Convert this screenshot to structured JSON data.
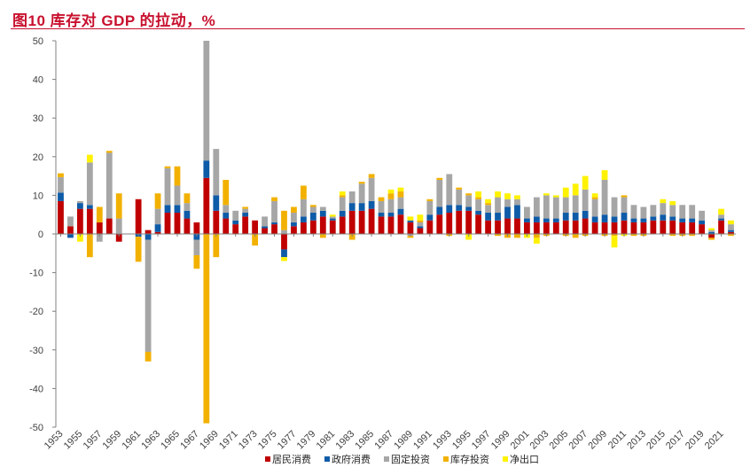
{
  "title": "图10 库存对 GDP 的拉动，%",
  "chart_data": {
    "type": "bar",
    "stacked": true,
    "ylim": [
      -50,
      50
    ],
    "yticks": [
      -50,
      -40,
      -30,
      -20,
      -10,
      0,
      10,
      20,
      30,
      40,
      50
    ],
    "x": [
      1953,
      1954,
      1955,
      1956,
      1957,
      1958,
      1959,
      1960,
      1961,
      1962,
      1963,
      1964,
      1965,
      1966,
      1967,
      1968,
      1969,
      1970,
      1971,
      1972,
      1973,
      1974,
      1975,
      1976,
      1977,
      1978,
      1979,
      1980,
      1981,
      1982,
      1983,
      1984,
      1985,
      1986,
      1987,
      1988,
      1989,
      1990,
      1991,
      1992,
      1993,
      1994,
      1995,
      1996,
      1997,
      1998,
      1999,
      2000,
      2001,
      2002,
      2003,
      2004,
      2005,
      2006,
      2007,
      2008,
      2009,
      2010,
      2011,
      2012,
      2013,
      2014,
      2015,
      2016,
      2017,
      2018,
      2019,
      2020,
      2021,
      2022
    ],
    "xtick_labels": [
      "1953",
      "1955",
      "1957",
      "1959",
      "1961",
      "1963",
      "1965",
      "1967",
      "1969",
      "1971",
      "1973",
      "1975",
      "1977",
      "1979",
      "1981",
      "1983",
      "1985",
      "1987",
      "1989",
      "1991",
      "1993",
      "1995",
      "1997",
      "1999",
      "2001",
      "2003",
      "2005",
      "2007",
      "2009",
      "2011",
      "2013",
      "2015",
      "2017",
      "2019",
      "2021"
    ],
    "legend_position": "bottom",
    "grid": false,
    "series": [
      {
        "name": "居民消费",
        "color": "#C00000",
        "values": [
          8.5,
          2,
          6.5,
          6.5,
          3,
          4,
          -2,
          0,
          9,
          1,
          0.5,
          5.5,
          5.5,
          4,
          3,
          14.5,
          6,
          4,
          2.5,
          4.5,
          3.5,
          1.5,
          2.5,
          -4,
          2,
          3,
          3.5,
          4.5,
          3.5,
          4.5,
          6,
          6,
          6.5,
          4.5,
          4.5,
          5,
          3,
          1.5,
          3.5,
          5,
          5.5,
          6,
          6,
          5,
          3.5,
          3.5,
          4,
          4,
          3,
          3,
          3,
          3,
          3.5,
          3.5,
          4,
          3,
          3,
          3,
          3.5,
          3,
          3,
          3.5,
          3.5,
          3.5,
          3,
          3,
          2.5,
          -1,
          3.5,
          0.5
        ]
      },
      {
        "name": "政府消费",
        "color": "#0E5BA8",
        "values": [
          2.2,
          -1,
          1.5,
          1,
          0,
          0,
          0,
          0,
          -0.7,
          -1.5,
          2,
          2,
          2,
          2,
          -1.5,
          4.5,
          4,
          1.5,
          1,
          1,
          0,
          0.5,
          0.5,
          -2,
          1,
          1.5,
          2,
          1.5,
          0.5,
          1.5,
          2,
          2,
          2,
          1,
          1,
          1.5,
          0.5,
          0.5,
          1.5,
          2,
          2,
          1.5,
          1,
          1,
          2,
          2,
          3,
          3.5,
          1,
          1.5,
          1,
          1,
          2,
          2,
          2,
          1.5,
          2,
          1.5,
          2,
          1,
          1,
          1,
          1.5,
          1,
          1,
          1,
          1,
          0.5,
          0.5,
          0.5
        ]
      },
      {
        "name": "固定投资",
        "color": "#A6A6A6",
        "values": [
          4,
          2.5,
          0.5,
          11,
          -2,
          17,
          4,
          0,
          0,
          -29,
          4,
          9.5,
          5,
          2,
          -4,
          31,
          12,
          2,
          2.5,
          1,
          0,
          2.5,
          5.5,
          1,
          2.5,
          4.5,
          1.5,
          1,
          0.5,
          3.5,
          3,
          5,
          6,
          3,
          3.5,
          3,
          -0.5,
          1,
          3.5,
          7,
          8,
          4,
          3,
          3,
          2,
          4,
          2,
          1.5,
          3,
          5,
          6,
          5.5,
          4,
          4.5,
          5.5,
          4.5,
          9,
          5,
          4,
          3.5,
          3,
          3,
          3,
          3,
          3.5,
          3.5,
          2.5,
          0.5,
          1,
          1.5
        ]
      },
      {
        "name": "库存投资",
        "color": "#F2B100",
        "values": [
          1,
          0,
          0,
          -6,
          4,
          0.5,
          6.5,
          0,
          -6.5,
          -2.5,
          4,
          0.5,
          5,
          2.5,
          -3.5,
          -49,
          -6,
          6.5,
          0,
          0.5,
          -3,
          0,
          1,
          5,
          1.5,
          3.5,
          0.5,
          -1,
          0,
          0.5,
          -1.5,
          0.5,
          1,
          1,
          1.5,
          1.5,
          -0.5,
          0.5,
          0.5,
          0.5,
          -0.5,
          0.5,
          0.5,
          0.5,
          0.5,
          -0.5,
          -1,
          -1,
          0,
          -1,
          -0.5,
          0,
          -0.5,
          -1,
          -0.5,
          0.5,
          -0.5,
          -0.5,
          0.5,
          -0.5,
          -0.5,
          0,
          0,
          -0.5,
          -0.5,
          -0.5,
          0,
          -0.5,
          0,
          -0.5
        ]
      },
      {
        "name": "净出口",
        "color": "#FFF200",
        "values": [
          0,
          0,
          -2,
          2,
          0,
          0,
          0,
          0,
          0,
          0,
          0,
          0,
          0,
          0,
          0,
          0,
          0,
          0,
          0,
          0,
          0,
          0,
          0,
          -1,
          0,
          0,
          0,
          0,
          0.5,
          1,
          0,
          0,
          0,
          0,
          1,
          1,
          1,
          1.5,
          0,
          0,
          0,
          0,
          -1.5,
          1.5,
          1,
          1.5,
          1.5,
          1,
          -1,
          -1.5,
          0.5,
          0.5,
          2.5,
          3,
          3.5,
          1,
          2.5,
          -3,
          -0.5,
          0,
          0,
          0,
          1,
          1,
          0,
          0,
          0,
          0.5,
          1.5,
          1
        ]
      }
    ]
  }
}
